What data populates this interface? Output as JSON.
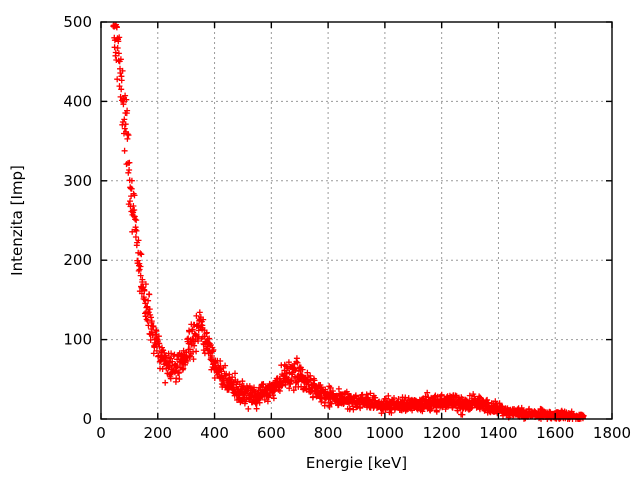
{
  "chart_data": {
    "type": "scatter",
    "title": "",
    "xlabel": "Energie [keV]",
    "ylabel": "Intenzita [Imp]",
    "xlim": [
      0,
      1800
    ],
    "ylim": [
      0,
      500
    ],
    "xticks": [
      0,
      200,
      400,
      600,
      800,
      1000,
      1200,
      1400,
      1600,
      1800
    ],
    "yticks": [
      0,
      100,
      200,
      300,
      400,
      500
    ],
    "grid": true,
    "grid_style": "dashed",
    "grid_color": "#9a9a9a",
    "frame_color": "#000000",
    "background_color": "#ffffff",
    "legend": null,
    "marker": {
      "shape": "plus",
      "color": "#ff0000",
      "size": 7
    },
    "series": [
      {
        "description": "gamma spectrum: steep low-energy continuum falling from ~500 Imp near 50 keV, local minimum ~63 Imp near 260 keV, photopeak ~118 Imp at ~350 keV, second peak ~60 Imp at ~680 keV, small humps ~20 Imp near 1200 and 1330 keV, tail to ~2 Imp at 1700 keV",
        "x_start": 42,
        "x_end": 1700,
        "x_step": 1,
        "noise": "poisson-like",
        "noise_scale": 1.1,
        "seed": 42,
        "profile": [
          [
            42,
            515
          ],
          [
            48,
            498
          ],
          [
            55,
            478
          ],
          [
            62,
            452
          ],
          [
            70,
            428
          ],
          [
            78,
            402
          ],
          [
            85,
            375
          ],
          [
            92,
            348
          ],
          [
            100,
            308
          ],
          [
            108,
            278
          ],
          [
            116,
            250
          ],
          [
            124,
            226
          ],
          [
            132,
            204
          ],
          [
            140,
            184
          ],
          [
            150,
            160
          ],
          [
            160,
            140
          ],
          [
            170,
            124
          ],
          [
            180,
            110
          ],
          [
            190,
            99
          ],
          [
            200,
            90
          ],
          [
            215,
            78
          ],
          [
            230,
            70
          ],
          [
            245,
            65
          ],
          [
            260,
            63
          ],
          [
            275,
            66
          ],
          [
            290,
            73
          ],
          [
            305,
            83
          ],
          [
            320,
            98
          ],
          [
            335,
            112
          ],
          [
            348,
            118
          ],
          [
            358,
            113
          ],
          [
            370,
            100
          ],
          [
            385,
            84
          ],
          [
            400,
            70
          ],
          [
            420,
            57
          ],
          [
            440,
            48
          ],
          [
            460,
            42
          ],
          [
            480,
            37
          ],
          [
            500,
            34
          ],
          [
            520,
            31
          ],
          [
            540,
            29
          ],
          [
            560,
            30
          ],
          [
            580,
            33
          ],
          [
            600,
            38
          ],
          [
            620,
            44
          ],
          [
            640,
            50
          ],
          [
            660,
            56
          ],
          [
            675,
            60
          ],
          [
            690,
            57
          ],
          [
            705,
            52
          ],
          [
            720,
            46
          ],
          [
            740,
            40
          ],
          [
            760,
            35
          ],
          [
            790,
            30
          ],
          [
            820,
            27
          ],
          [
            860,
            24
          ],
          [
            900,
            22
          ],
          [
            950,
            20
          ],
          [
            1000,
            18
          ],
          [
            1050,
            17
          ],
          [
            1100,
            18
          ],
          [
            1150,
            19
          ],
          [
            1200,
            22
          ],
          [
            1240,
            20
          ],
          [
            1270,
            18
          ],
          [
            1300,
            19
          ],
          [
            1330,
            20
          ],
          [
            1360,
            16
          ],
          [
            1400,
            12
          ],
          [
            1450,
            9
          ],
          [
            1500,
            7
          ],
          [
            1550,
            6
          ],
          [
            1600,
            5
          ],
          [
            1650,
            4
          ],
          [
            1700,
            3
          ]
        ]
      }
    ]
  }
}
